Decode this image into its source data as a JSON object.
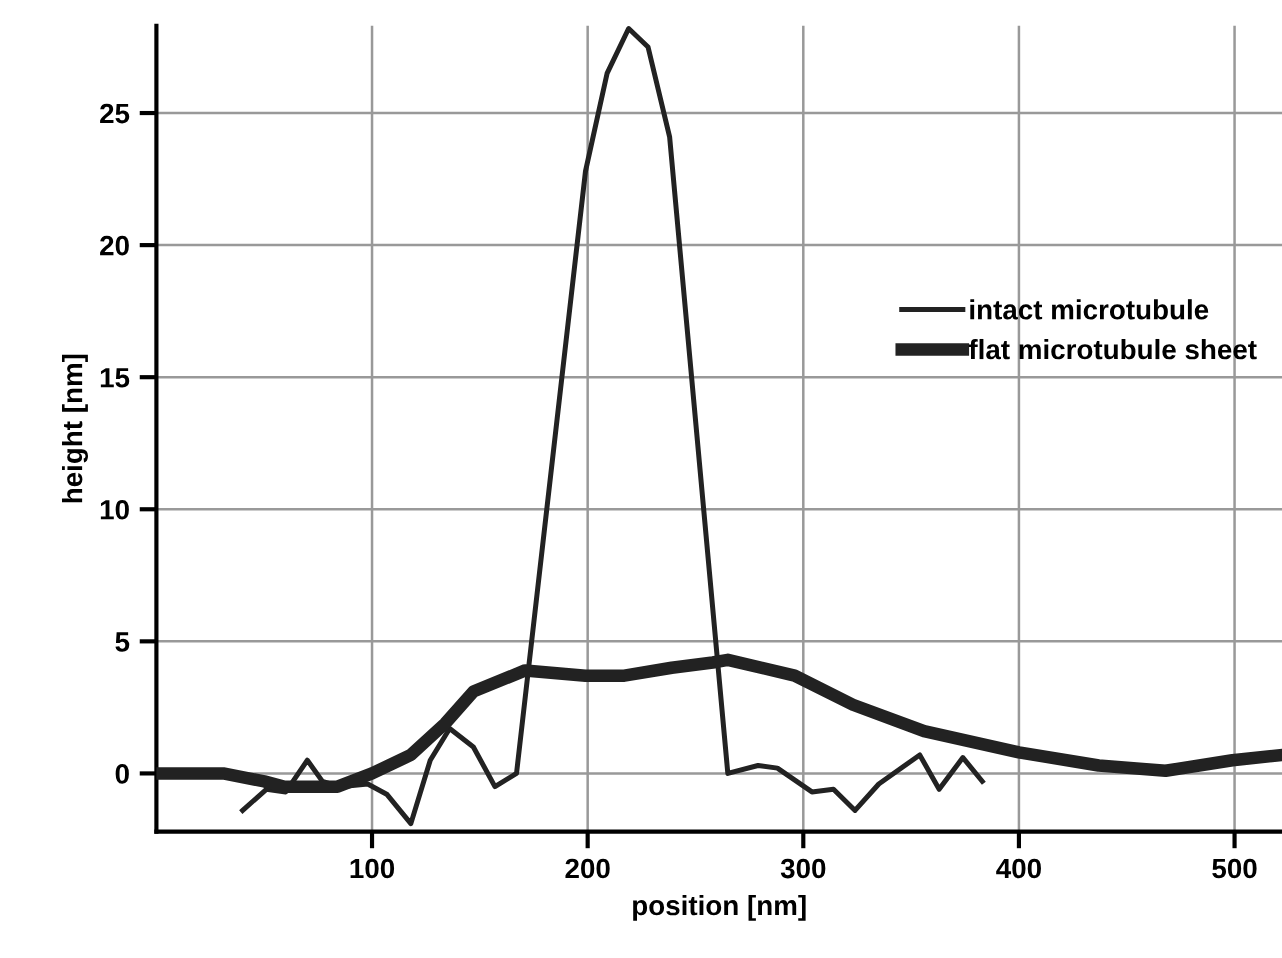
{
  "chart_data": {
    "type": "line",
    "xlabel": "position [nm]",
    "ylabel": "height [nm]",
    "xlim": [
      0,
      522
    ],
    "ylim": [
      -2.2,
      28.3
    ],
    "xticks": [
      100,
      200,
      300,
      400,
      500
    ],
    "yticks": [
      0,
      5,
      10,
      15,
      20,
      25
    ],
    "grid": true,
    "legend": "center right",
    "line_style": "solid",
    "marker": "none",
    "series": [
      {
        "name": "intact microtubule",
        "color": "#222222",
        "x": [
          40,
          51,
          60,
          70,
          77,
          85,
          98,
          107,
          118,
          127,
          136,
          147,
          157,
          167,
          199,
          209,
          219,
          228,
          238,
          265,
          279,
          288,
          304,
          314,
          324,
          335,
          354,
          363,
          374,
          383
        ],
        "values": [
          -1.4,
          -0.6,
          -0.7,
          0.5,
          -0.3,
          -0.5,
          -0.4,
          -0.8,
          -1.9,
          0.5,
          1.7,
          1.0,
          -0.5,
          0.0,
          22.8,
          26.5,
          28.2,
          27.5,
          24.1,
          0.0,
          0.3,
          0.2,
          -0.7,
          -0.6,
          -1.4,
          -0.4,
          0.7,
          -0.6,
          0.6,
          -0.3
        ]
      },
      {
        "name": "flat microtubule sheet",
        "color": "#222222",
        "x": [
          0,
          31,
          50,
          59,
          84,
          100,
          118,
          134,
          147,
          171,
          199,
          217,
          239,
          258,
          265,
          296,
          323,
          356,
          400,
          437,
          468,
          499,
          522
        ],
        "values": [
          0.0,
          0.0,
          -0.3,
          -0.5,
          -0.5,
          0.0,
          0.7,
          1.9,
          3.1,
          3.9,
          3.7,
          3.7,
          4.0,
          4.2,
          4.3,
          3.7,
          2.6,
          1.6,
          0.8,
          0.3,
          0.1,
          0.5,
          0.7
        ]
      }
    ]
  }
}
